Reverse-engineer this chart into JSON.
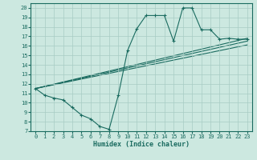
{
  "xlabel": "Humidex (Indice chaleur)",
  "xlim": [
    -0.5,
    23.5
  ],
  "ylim": [
    7,
    20.5
  ],
  "yticks": [
    7,
    8,
    9,
    10,
    11,
    12,
    13,
    14,
    15,
    16,
    17,
    18,
    19,
    20
  ],
  "xticks": [
    0,
    1,
    2,
    3,
    4,
    5,
    6,
    7,
    8,
    9,
    10,
    11,
    12,
    13,
    14,
    15,
    16,
    17,
    18,
    19,
    20,
    21,
    22,
    23
  ],
  "bg_color": "#cce8e0",
  "line_color": "#1a6b60",
  "grid_color": "#a8ccc4",
  "main_line": {
    "x": [
      0,
      1,
      2,
      3,
      4,
      5,
      6,
      7,
      8,
      9,
      10,
      11,
      12,
      13,
      14,
      15,
      16,
      17,
      18,
      19,
      20,
      21,
      22,
      23
    ],
    "y": [
      11.5,
      10.8,
      10.5,
      10.3,
      9.5,
      8.7,
      8.3,
      7.5,
      7.2,
      10.8,
      15.5,
      17.8,
      19.2,
      19.2,
      19.2,
      16.5,
      20.0,
      20.0,
      17.7,
      17.7,
      16.7,
      16.8,
      16.7,
      16.7
    ]
  },
  "smooth_lines": [
    {
      "x0": 0,
      "y0": 11.5,
      "x1": 23,
      "y1": 16.8
    },
    {
      "x0": 0,
      "y0": 11.5,
      "x1": 23,
      "y1": 16.5
    },
    {
      "x0": 0,
      "y0": 11.5,
      "x1": 23,
      "y1": 16.1
    }
  ]
}
